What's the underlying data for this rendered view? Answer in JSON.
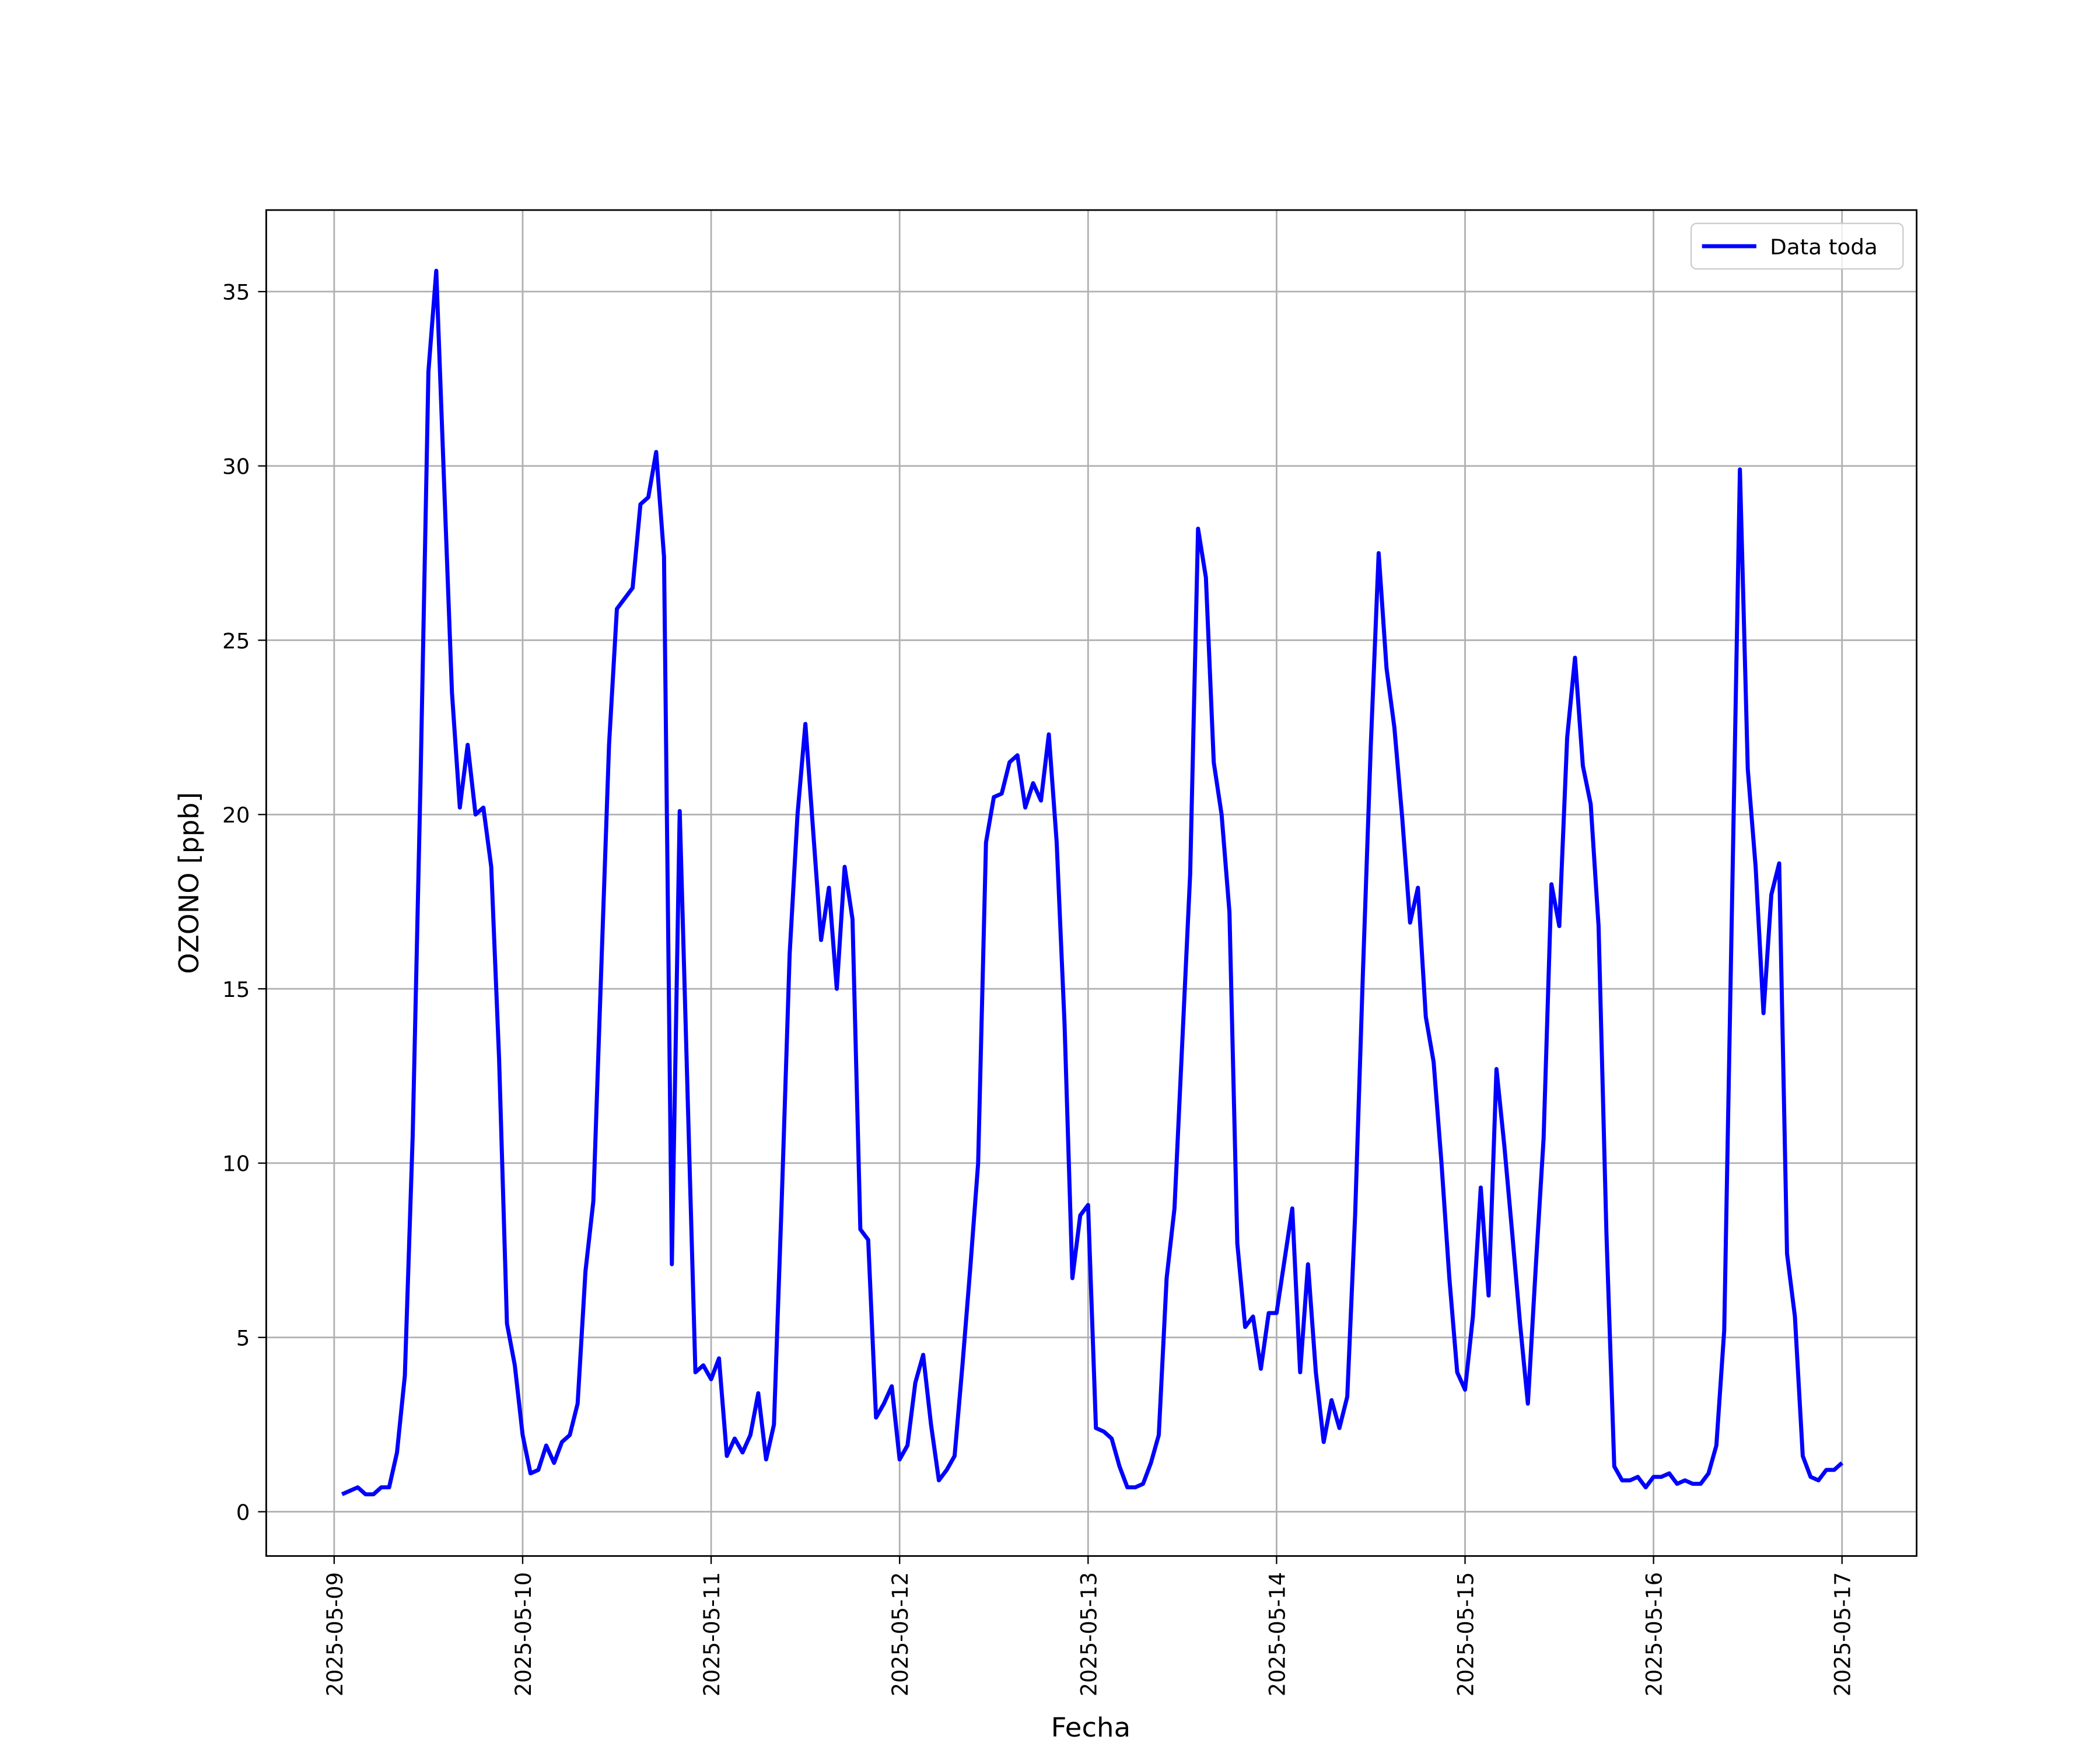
{
  "chart_data": {
    "type": "line",
    "xlabel": "Fecha",
    "ylabel": "OZONO [ppb]",
    "x": [
      "2025-05-09 01:00",
      "2025-05-09 02:00",
      "2025-05-09 03:00",
      "2025-05-09 04:00",
      "2025-05-09 05:00",
      "2025-05-09 06:00",
      "2025-05-09 07:00",
      "2025-05-09 08:00",
      "2025-05-09 09:00",
      "2025-05-09 10:00",
      "2025-05-09 11:00",
      "2025-05-09 12:00",
      "2025-05-09 13:00",
      "2025-05-09 14:00",
      "2025-05-09 15:00",
      "2025-05-09 16:00",
      "2025-05-09 17:00",
      "2025-05-09 18:00",
      "2025-05-09 19:00",
      "2025-05-09 20:00",
      "2025-05-09 21:00",
      "2025-05-09 22:00",
      "2025-05-09 23:00",
      "2025-05-10 00:00",
      "2025-05-10 01:00",
      "2025-05-10 02:00",
      "2025-05-10 03:00",
      "2025-05-10 04:00",
      "2025-05-10 05:00",
      "2025-05-10 06:00",
      "2025-05-10 07:00",
      "2025-05-10 08:00",
      "2025-05-10 09:00",
      "2025-05-10 10:00",
      "2025-05-10 11:00",
      "2025-05-10 12:00",
      "2025-05-10 13:00",
      "2025-05-10 14:00",
      "2025-05-10 15:00",
      "2025-05-10 16:00",
      "2025-05-10 17:00",
      "2025-05-10 18:00",
      "2025-05-10 19:00",
      "2025-05-10 20:00",
      "2025-05-10 21:00",
      "2025-05-10 22:00",
      "2025-05-10 23:00",
      "2025-05-11 00:00",
      "2025-05-11 01:00",
      "2025-05-11 02:00",
      "2025-05-11 03:00",
      "2025-05-11 04:00",
      "2025-05-11 05:00",
      "2025-05-11 06:00",
      "2025-05-11 07:00",
      "2025-05-11 08:00",
      "2025-05-11 09:00",
      "2025-05-11 10:00",
      "2025-05-11 11:00",
      "2025-05-11 12:00",
      "2025-05-11 13:00",
      "2025-05-11 14:00",
      "2025-05-11 15:00",
      "2025-05-11 16:00",
      "2025-05-11 17:00",
      "2025-05-11 18:00",
      "2025-05-11 19:00",
      "2025-05-11 20:00",
      "2025-05-11 21:00",
      "2025-05-11 22:00",
      "2025-05-11 23:00",
      "2025-05-12 00:00",
      "2025-05-12 01:00",
      "2025-05-12 02:00",
      "2025-05-12 03:00",
      "2025-05-12 04:00",
      "2025-05-12 05:00",
      "2025-05-12 06:00",
      "2025-05-12 07:00",
      "2025-05-12 08:00",
      "2025-05-12 09:00",
      "2025-05-12 10:00",
      "2025-05-12 11:00",
      "2025-05-12 12:00",
      "2025-05-12 13:00",
      "2025-05-12 14:00",
      "2025-05-12 15:00",
      "2025-05-12 16:00",
      "2025-05-12 17:00",
      "2025-05-12 18:00",
      "2025-05-12 19:00",
      "2025-05-12 20:00",
      "2025-05-12 21:00",
      "2025-05-12 22:00",
      "2025-05-12 23:00",
      "2025-05-13 00:00",
      "2025-05-13 01:00",
      "2025-05-13 02:00",
      "2025-05-13 03:00",
      "2025-05-13 04:00",
      "2025-05-13 05:00",
      "2025-05-13 06:00",
      "2025-05-13 07:00",
      "2025-05-13 08:00",
      "2025-05-13 09:00",
      "2025-05-13 10:00",
      "2025-05-13 11:00",
      "2025-05-13 12:00",
      "2025-05-13 13:00",
      "2025-05-13 14:00",
      "2025-05-13 15:00",
      "2025-05-13 16:00",
      "2025-05-13 17:00",
      "2025-05-13 18:00",
      "2025-05-13 19:00",
      "2025-05-13 20:00",
      "2025-05-13 21:00",
      "2025-05-13 22:00",
      "2025-05-13 23:00",
      "2025-05-14 00:00",
      "2025-05-14 01:00",
      "2025-05-14 02:00",
      "2025-05-14 03:00",
      "2025-05-14 04:00",
      "2025-05-14 05:00",
      "2025-05-14 06:00",
      "2025-05-14 07:00",
      "2025-05-14 08:00",
      "2025-05-14 09:00",
      "2025-05-14 10:00",
      "2025-05-14 11:00",
      "2025-05-14 12:00",
      "2025-05-14 13:00",
      "2025-05-14 14:00",
      "2025-05-14 15:00",
      "2025-05-14 16:00",
      "2025-05-14 17:00",
      "2025-05-14 18:00",
      "2025-05-14 19:00",
      "2025-05-14 20:00",
      "2025-05-14 21:00",
      "2025-05-14 22:00",
      "2025-05-14 23:00",
      "2025-05-15 00:00",
      "2025-05-15 01:00",
      "2025-05-15 02:00",
      "2025-05-15 03:00",
      "2025-05-15 04:00",
      "2025-05-15 05:00",
      "2025-05-15 06:00",
      "2025-05-15 07:00",
      "2025-05-15 08:00",
      "2025-05-15 09:00",
      "2025-05-15 10:00",
      "2025-05-15 11:00",
      "2025-05-15 12:00",
      "2025-05-15 13:00",
      "2025-05-15 14:00",
      "2025-05-15 15:00",
      "2025-05-15 16:00",
      "2025-05-15 17:00",
      "2025-05-15 18:00",
      "2025-05-15 19:00",
      "2025-05-15 20:00",
      "2025-05-15 21:00",
      "2025-05-15 22:00",
      "2025-05-15 23:00",
      "2025-05-16 00:00",
      "2025-05-16 01:00",
      "2025-05-16 02:00",
      "2025-05-16 03:00",
      "2025-05-16 04:00",
      "2025-05-16 05:00",
      "2025-05-16 06:00",
      "2025-05-16 07:00",
      "2025-05-16 08:00",
      "2025-05-16 09:00",
      "2025-05-16 10:00",
      "2025-05-16 11:00",
      "2025-05-16 12:00",
      "2025-05-16 13:00",
      "2025-05-16 14:00",
      "2025-05-16 15:00",
      "2025-05-16 16:00",
      "2025-05-16 17:00",
      "2025-05-16 18:00",
      "2025-05-16 19:00",
      "2025-05-16 20:00",
      "2025-05-16 21:00",
      "2025-05-16 22:00",
      "2025-05-16 23:00",
      "2025-05-17 00:00"
    ],
    "series": [
      {
        "name": "Data toda",
        "color": "#0000ff",
        "values": [
          0.5,
          0.6,
          0.7,
          0.5,
          0.5,
          0.7,
          0.7,
          1.7,
          3.9,
          10.8,
          21,
          32.7,
          35.6,
          29.5,
          23.5,
          20.2,
          22.0,
          20.0,
          20.2,
          18.5,
          13.0,
          5.4,
          4.2,
          2.2,
          1.1,
          1.2,
          1.9,
          1.4,
          2.0,
          2.2,
          3.1,
          6.9,
          8.9,
          15.5,
          22.0,
          25.9,
          26.2,
          26.5,
          28.9,
          29.1,
          30.4,
          27.4,
          7.1,
          20.1,
          12.0,
          4.0,
          4.2,
          3.8,
          4.4,
          1.6,
          2.1,
          1.7,
          2.2,
          3.4,
          1.5,
          2.5,
          9.0,
          16.0,
          20.0,
          22.6,
          19.5,
          16.4,
          17.9,
          15.0,
          18.5,
          17.0,
          8.1,
          7.8,
          2.7,
          3.1,
          3.6,
          1.5,
          1.9,
          3.7,
          4.5,
          2.5,
          0.9,
          1.2,
          1.6,
          4.2,
          7.0,
          10.0,
          19.2,
          20.5,
          20.6,
          21.5,
          21.7,
          20.2,
          20.9,
          20.4,
          22.3,
          19.2,
          14.0,
          6.7,
          8.5,
          8.8,
          2.4,
          2.3,
          2.1,
          1.3,
          0.7,
          0.7,
          0.8,
          1.4,
          2.2,
          6.7,
          8.7,
          13.5,
          18.3,
          28.2,
          26.8,
          21.5,
          20.0,
          17.2,
          7.7,
          5.3,
          5.6,
          4.1,
          5.7,
          5.7,
          7.2,
          8.7,
          4.0,
          7.1,
          4.0,
          2.0,
          3.2,
          2.4,
          3.3,
          8.5,
          15.5,
          22.0,
          27.5,
          24.2,
          22.5,
          19.9,
          16.9,
          17.9,
          14.2,
          12.9,
          10.0,
          6.7,
          4.0,
          3.5,
          5.6,
          9.3,
          6.2,
          12.7,
          10.5,
          8.0,
          5.4,
          3.1,
          7.0,
          10.7,
          18.0,
          16.8,
          22.2,
          24.5,
          21.4,
          20.3,
          16.8,
          8.0,
          1.3,
          0.9,
          0.9,
          1.0,
          0.7,
          1.0,
          1.0,
          1.1,
          0.8,
          0.9,
          0.8,
          0.8,
          1.1,
          1.9,
          5.2,
          17.5,
          29.9,
          21.3,
          18.5,
          14.3,
          17.7,
          18.6,
          7.4,
          5.6,
          1.6,
          1.0,
          0.9,
          1.2,
          1.2,
          1.4
        ]
      }
    ],
    "xlim": [
      "2025-05-08 15:21",
      "2025-05-17 09:30"
    ],
    "xticks": [
      "2025-05-09",
      "2025-05-10",
      "2025-05-11",
      "2025-05-12",
      "2025-05-13",
      "2025-05-14",
      "2025-05-15",
      "2025-05-16",
      "2025-05-17"
    ],
    "ylim": [
      -1.27,
      37.34
    ],
    "yticks": [
      0,
      5,
      10,
      15,
      20,
      25,
      30,
      35
    ],
    "grid": true,
    "legend": "upper right"
  }
}
